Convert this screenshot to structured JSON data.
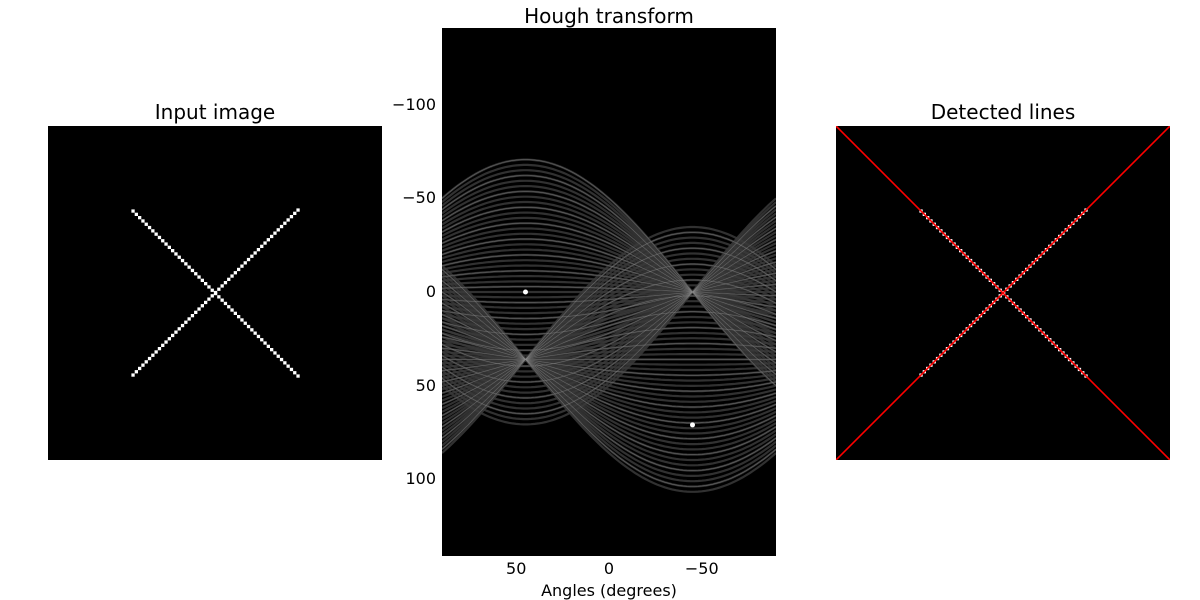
{
  "chart_data": [
    {
      "type": "image",
      "title": "Input image",
      "lines": [
        {
          "x1": -1,
          "y1": -1,
          "x2": 1,
          "y2": 1
        },
        {
          "x1": -1,
          "y1": 1,
          "x2": 1,
          "y2": -1
        }
      ],
      "colors": {
        "background": "#000000",
        "foreground": "#ffffff"
      }
    },
    {
      "type": "heatmap",
      "title": "Hough transform",
      "xlabel": "Angles (degrees)",
      "ylabel": "",
      "x_ticks": [
        "50",
        "0",
        "−50"
      ],
      "y_ticks": [
        "−100",
        "−50",
        "0",
        "50",
        "100"
      ],
      "xlim": [
        90,
        -90
      ],
      "ylim": [
        -141,
        141
      ],
      "peaks": [
        {
          "angle": 45,
          "distance": 0
        },
        {
          "angle": -45,
          "distance": 71
        }
      ],
      "colors": {
        "background": "#000000",
        "band": "#3a3a3a",
        "peak": "#ffffff"
      }
    },
    {
      "type": "image",
      "title": "Detected lines",
      "detected": [
        {
          "angle": 45,
          "distance": 0
        },
        {
          "angle": -45,
          "distance": 0
        }
      ],
      "colors": {
        "background": "#000000",
        "foreground": "#ffffff",
        "line": "#ff0000"
      }
    }
  ]
}
